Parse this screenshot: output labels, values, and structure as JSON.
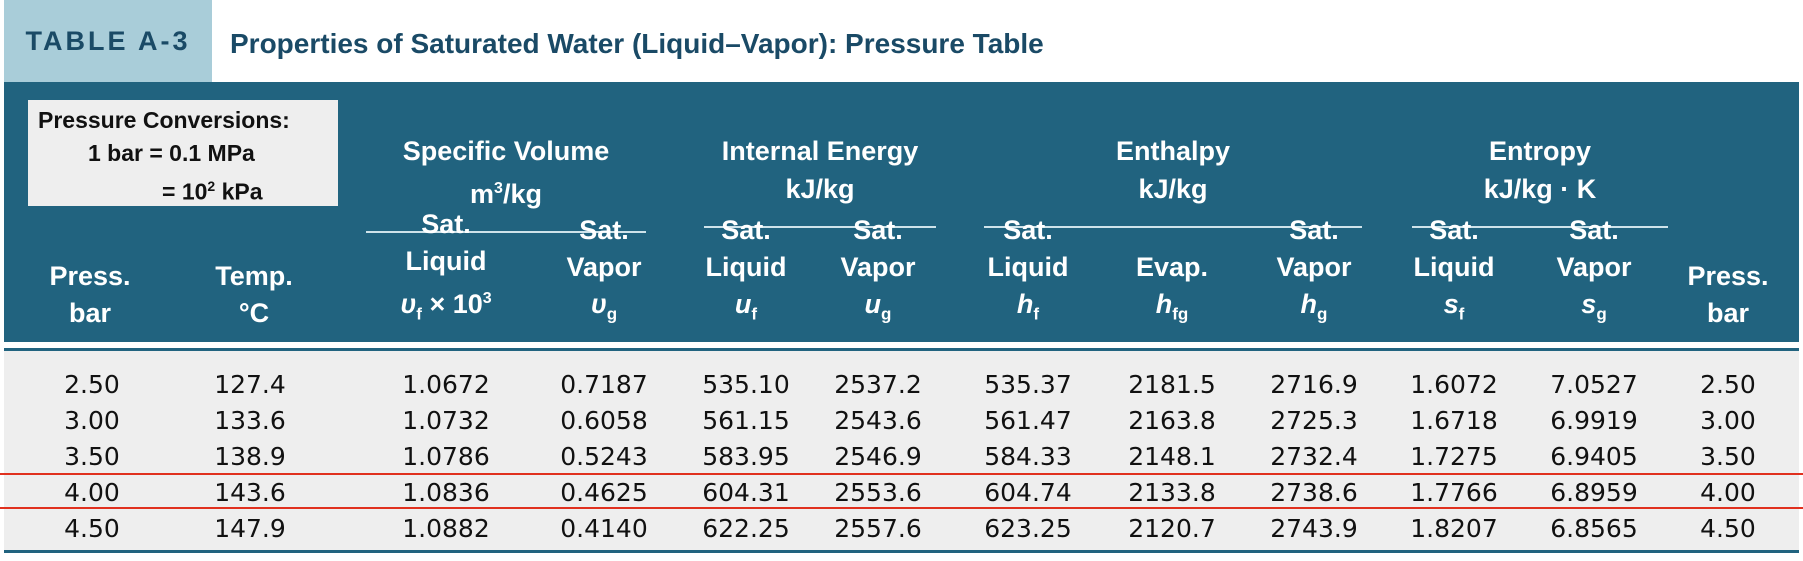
{
  "header": {
    "tag": "TABLE A-3",
    "title": "Properties of Saturated Water (Liquid–Vapor): Pressure Table"
  },
  "conversions": {
    "line1": "Pressure Conversions:",
    "line2": "1 bar = 0.1 MPa",
    "line3_prefix": "= 10",
    "line3_sup": "2",
    "line3_suffix": " kPa"
  },
  "groups": {
    "specific_volume": {
      "name": "Specific Volume",
      "unit_prefix": "m",
      "unit_sup": "3",
      "unit_suffix": "/kg"
    },
    "internal_energy": {
      "name": "Internal Energy",
      "unit": "kJ/kg"
    },
    "enthalpy": {
      "name": "Enthalpy",
      "unit": "kJ/kg"
    },
    "entropy": {
      "name": "Entropy",
      "unit": "kJ/kg · K"
    }
  },
  "columns": {
    "press": {
      "l1": "Press.",
      "l2": "bar"
    },
    "temp": {
      "l1": "Temp.",
      "l2": "°C"
    },
    "vf": {
      "l1": "Sat.",
      "l2": "Liquid",
      "sym": "υ",
      "sub": "f",
      "suffix": " × 10",
      "sup": "3"
    },
    "vg": {
      "l1": "Sat.",
      "l2": "Vapor",
      "sym": "υ",
      "sub": "g"
    },
    "uf": {
      "l1": "Sat.",
      "l2": "Liquid",
      "sym": "u",
      "sub": "f"
    },
    "ug": {
      "l1": "Sat.",
      "l2": "Vapor",
      "sym": "u",
      "sub": "g"
    },
    "hf": {
      "l1": "Sat.",
      "l2": "Liquid",
      "sym": "h",
      "sub": "f"
    },
    "hfg": {
      "l1": "Evap.",
      "sym": "h",
      "sub": "fg"
    },
    "hg": {
      "l1": "Sat.",
      "l2": "Vapor",
      "sym": "h",
      "sub": "g"
    },
    "sf": {
      "l1": "Sat.",
      "l2": "Liquid",
      "sym": "s",
      "sub": "f"
    },
    "sg": {
      "l1": "Sat.",
      "l2": "Vapor",
      "sym": "s",
      "sub": "g"
    },
    "press2": {
      "l1": "Press.",
      "l2": "bar"
    }
  },
  "rows": [
    [
      "2.50",
      "127.4",
      "1.0672",
      "0.7187",
      "535.10",
      "2537.2",
      "535.37",
      "2181.5",
      "2716.9",
      "1.6072",
      "7.0527",
      "2.50"
    ],
    [
      "3.00",
      "133.6",
      "1.0732",
      "0.6058",
      "561.15",
      "2543.6",
      "561.47",
      "2163.8",
      "2725.3",
      "1.6718",
      "6.9919",
      "3.00"
    ],
    [
      "3.50",
      "138.9",
      "1.0786",
      "0.5243",
      "583.95",
      "2546.9",
      "584.33",
      "2148.1",
      "2732.4",
      "1.7275",
      "6.9405",
      "3.50"
    ],
    [
      "4.00",
      "143.6",
      "1.0836",
      "0.4625",
      "604.31",
      "2553.6",
      "604.74",
      "2133.8",
      "2738.6",
      "1.7766",
      "6.8959",
      "4.00"
    ],
    [
      "4.50",
      "147.9",
      "1.0882",
      "0.4140",
      "622.25",
      "2557.6",
      "623.25",
      "2120.7",
      "2743.9",
      "1.8207",
      "6.8565",
      "4.50"
    ]
  ],
  "highlight_color": "#e0301e"
}
